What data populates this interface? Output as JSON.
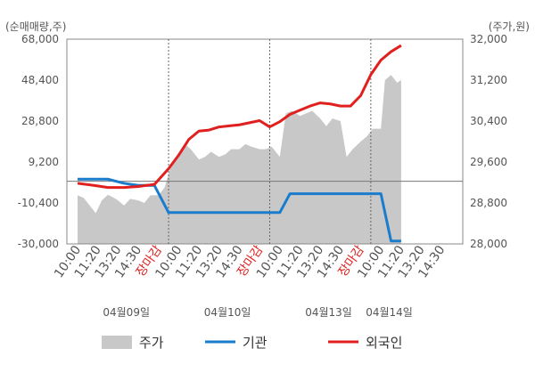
{
  "chart_data": {
    "type": "line",
    "left_axis_title": "(순매매량,주)",
    "right_axis_title": "(주가,원)",
    "left_ticks": [
      "68,000",
      "48,400",
      "28,800",
      "9,200",
      "-10,400",
      "-30,000"
    ],
    "right_ticks": [
      "32,000",
      "31,200",
      "30,400",
      "29,600",
      "28,800",
      "28,000"
    ],
    "y_left_range": [
      -30000,
      68000
    ],
    "y_right_range": [
      28000,
      32000
    ],
    "x_tick_labels": [
      "10:00",
      "11:20",
      "13:20",
      "14:30",
      "장마감",
      "10:00",
      "11:20",
      "13:20",
      "14:30",
      "장마감",
      "10:00",
      "11:20",
      "13:20",
      "14:30",
      "장마감",
      "10:00",
      "11:20",
      "13:20",
      "14:30"
    ],
    "x_tick_close_flags": [
      false,
      false,
      false,
      false,
      true,
      false,
      false,
      false,
      false,
      true,
      false,
      false,
      false,
      false,
      true,
      false,
      false,
      false,
      false
    ],
    "dates": [
      "04월09일",
      "04월10일",
      "04월13일",
      "04월14일"
    ],
    "date_positions": [
      2.5,
      7.5,
      12.5,
      15.5
    ],
    "day_separators": [
      4.5,
      9.5,
      14.5
    ],
    "series": [
      {
        "name": "주가",
        "kind": "area",
        "axis": "right",
        "color": "#c8c8c8",
        "x": [
          0,
          0.3,
          0.6,
          0.9,
          1.2,
          1.5,
          1.8,
          2.0,
          2.3,
          2.6,
          3.0,
          3.3,
          3.6,
          4.0,
          4.3,
          4.6,
          5.0,
          5.3,
          5.6,
          6.0,
          6.3,
          6.6,
          7.0,
          7.3,
          7.6,
          8.0,
          8.3,
          8.6,
          9.0,
          9.3,
          9.6,
          10.0,
          10.3,
          10.6,
          11.0,
          11.3,
          11.6,
          12.0,
          12.3,
          12.6,
          13.0,
          13.3,
          13.6,
          14.0,
          14.3,
          14.6,
          15.0,
          15.2,
          15.5,
          15.8,
          16.0
        ],
        "values": [
          28950,
          28900,
          28750,
          28600,
          28850,
          28960,
          28900,
          28850,
          28750,
          28880,
          28850,
          28800,
          28950,
          28950,
          29100,
          29500,
          29700,
          29950,
          29850,
          29650,
          29700,
          29800,
          29700,
          29750,
          29850,
          29850,
          29950,
          29900,
          29850,
          29850,
          29900,
          29700,
          30550,
          30600,
          30500,
          30550,
          30600,
          30450,
          30300,
          30450,
          30400,
          29700,
          29850,
          30000,
          30100,
          30250,
          30250,
          31200,
          31300,
          31150,
          31200
        ]
      },
      {
        "name": "기관",
        "kind": "line",
        "axis": "left",
        "color": "#1a7ccc",
        "x": [
          0,
          0.8,
          1.5,
          2.3,
          3.0,
          3.8,
          4.5,
          5.0,
          5.5,
          6.0,
          6.5,
          7.0,
          7.5,
          8.0,
          8.5,
          9.0,
          9.5,
          10.0,
          10.5,
          11.0,
          11.5,
          12.0,
          12.5,
          13.0,
          13.5,
          14.0,
          14.5,
          15.0,
          15.5,
          16.0
        ],
        "values": [
          1000,
          1000,
          1000,
          -1000,
          -2000,
          -2000,
          -15000,
          -15000,
          -15000,
          -15000,
          -15000,
          -15000,
          -15000,
          -15000,
          -15000,
          -15000,
          -15000,
          -15000,
          -6000,
          -6000,
          -6000,
          -6000,
          -6000,
          -6000,
          -6000,
          -6000,
          -6000,
          -6000,
          -28600,
          -28600
        ]
      },
      {
        "name": "외국인",
        "kind": "line",
        "axis": "left",
        "color": "#e0201f",
        "x": [
          0,
          0.8,
          1.5,
          2.3,
          3.0,
          3.8,
          4.5,
          5.0,
          5.5,
          6.0,
          6.5,
          7.0,
          7.5,
          8.0,
          8.5,
          9.0,
          9.5,
          10.0,
          10.5,
          11.0,
          11.5,
          12.0,
          12.5,
          13.0,
          13.5,
          14.0,
          14.5,
          15.0,
          15.5,
          16.0
        ],
        "values": [
          -1000,
          -2000,
          -3000,
          -3000,
          -2500,
          -1500,
          6000,
          12500,
          20000,
          24000,
          24500,
          26000,
          26500,
          27000,
          28000,
          29000,
          26000,
          28500,
          32000,
          34000,
          36000,
          37500,
          37000,
          36000,
          36000,
          41000,
          51000,
          58000,
          62000,
          65000
        ]
      }
    ],
    "legend": [
      {
        "label": "주가",
        "color": "#c8c8c8",
        "kind": "box"
      },
      {
        "label": "기관",
        "color": "#1a7ccc",
        "kind": "line"
      },
      {
        "label": "외국인",
        "color": "#e0201f",
        "kind": "line"
      }
    ],
    "legend_position": "bottom",
    "grid": false
  }
}
